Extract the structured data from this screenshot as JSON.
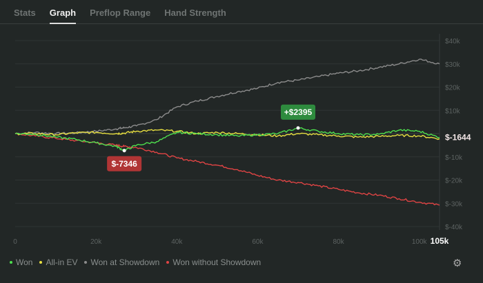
{
  "tabs": [
    {
      "label": "Stats"
    },
    {
      "label": "Graph",
      "active": true
    },
    {
      "label": "Preflop Range"
    },
    {
      "label": "Hand Strength"
    }
  ],
  "chart_data": {
    "type": "line",
    "xlabel": "",
    "ylabel": "",
    "xlim": [
      0,
      105000
    ],
    "ylim": [
      -40000,
      40000
    ],
    "x_ticks": [
      "0",
      "20k",
      "40k",
      "60k",
      "80k",
      "100k"
    ],
    "x_tick_values": [
      0,
      20000,
      40000,
      60000,
      80000,
      100000
    ],
    "x_end_label": "105k",
    "y_ticks": [
      "$40k",
      "$30k",
      "$20k",
      "$10k",
      "$-10k",
      "$-20k",
      "$-30k",
      "$-40k"
    ],
    "y_tick_values": [
      40000,
      30000,
      20000,
      10000,
      -10000,
      -20000,
      -30000,
      -40000
    ],
    "x": [
      0,
      5000,
      10000,
      15000,
      20000,
      25000,
      27000,
      30000,
      35000,
      40000,
      45000,
      50000,
      55000,
      60000,
      65000,
      70000,
      75000,
      80000,
      85000,
      90000,
      95000,
      100000,
      105000
    ],
    "series": [
      {
        "name": "Won",
        "color": "#4ee04e",
        "values": [
          0,
          -300,
          -1500,
          -2500,
          -4000,
          -5500,
          -7346,
          -5000,
          -3500,
          500,
          0,
          -500,
          -1000,
          -500,
          0,
          2395,
          1000,
          0,
          -500,
          -300,
          1500,
          1000,
          -1644
        ]
      },
      {
        "name": "All-in EV",
        "color": "#e8e040",
        "values": [
          0,
          0,
          -500,
          300,
          500,
          0,
          200,
          1000,
          1500,
          1000,
          0,
          500,
          0,
          -500,
          -1000,
          0,
          -500,
          -1000,
          -1500,
          -1200,
          -800,
          -1000,
          -2200
        ]
      },
      {
        "name": "Won at Showdown",
        "color": "#8c8c8c",
        "values": [
          0,
          500,
          0,
          300,
          1000,
          2000,
          2500,
          3300,
          6000,
          11500,
          14000,
          16000,
          18000,
          19500,
          22000,
          23000,
          24500,
          26000,
          27000,
          28500,
          30000,
          32000,
          30000
        ]
      },
      {
        "name": "Won without Showdown",
        "color": "#e04444",
        "values": [
          0,
          -1000,
          -2000,
          -3000,
          -4000,
          -5000,
          -5500,
          -6000,
          -8000,
          -10500,
          -12000,
          -13600,
          -15500,
          -18000,
          -20000,
          -21000,
          -22500,
          -24000,
          -25500,
          -26500,
          -28000,
          -29500,
          -30800
        ]
      }
    ],
    "annotations": [
      {
        "text": "+$2395",
        "x": 70000,
        "y": 2395,
        "color": "#2e8b3e"
      },
      {
        "text": "$-7346",
        "x": 27000,
        "y": -7346,
        "color": "#b03535"
      }
    ],
    "end_value_label": "$-1644",
    "grid": true,
    "legend": "bottom-left"
  }
}
